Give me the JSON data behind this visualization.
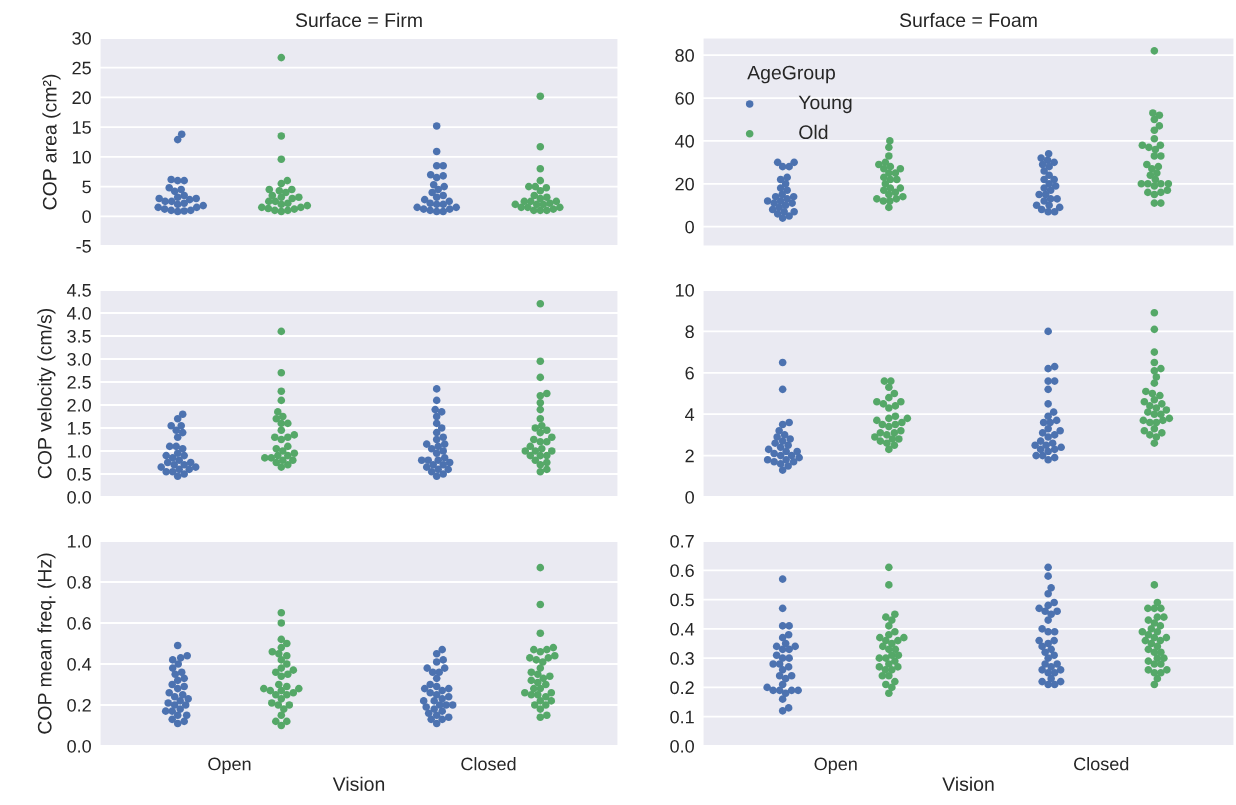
{
  "chart_data": [
    {
      "type": "scatter",
      "title": "Surface = Firm",
      "ylabel": "COP area (cm²)",
      "categories": [
        "Open",
        "Closed"
      ],
      "ylim": [
        -5,
        30
      ],
      "yticks": [
        -5,
        0,
        5,
        10,
        15,
        20,
        25,
        30
      ],
      "tick_labels": "y",
      "grid": "y",
      "marker": "circle",
      "series": [
        {
          "color": "#4c72b0",
          "x": [
            "Open",
            "Open",
            "Open",
            "Open",
            "Open",
            "Open",
            "Open",
            "Open",
            "Open",
            "Open",
            "Open",
            "Open",
            "Open",
            "Open",
            "Open",
            "Open",
            "Open",
            "Open",
            "Open",
            "Open",
            "Open",
            "Open",
            "Open",
            "Open",
            "Open",
            "Closed",
            "Closed",
            "Closed",
            "Closed",
            "Closed",
            "Closed",
            "Closed",
            "Closed",
            "Closed",
            "Closed",
            "Closed",
            "Closed",
            "Closed",
            "Closed",
            "Closed",
            "Closed",
            "Closed",
            "Closed",
            "Closed",
            "Closed",
            "Closed",
            "Closed",
            "Closed",
            "Closed",
            "Closed"
          ],
          "values": [
            6,
            1.5,
            3,
            0.8,
            2.2,
            1,
            3.5,
            6.2,
            1.8,
            2.8,
            6,
            1.2,
            13.8,
            4.5,
            2,
            12.9,
            1,
            4.8,
            3,
            1.5,
            2.5,
            0.9,
            3.2,
            2.5,
            4.2,
            0.8,
            2,
            3.2,
            1.5,
            2.5,
            15.2,
            1.2,
            6.8,
            5.3,
            3.5,
            1,
            4,
            2.2,
            6.5,
            8.5,
            1.2,
            5,
            8.5,
            2.8,
            4.5,
            1.5,
            10.9,
            7,
            2,
            0.8
          ]
        },
        {
          "color": "#55a868",
          "x": [
            "Open",
            "Open",
            "Open",
            "Open",
            "Open",
            "Open",
            "Open",
            "Open",
            "Open",
            "Open",
            "Open",
            "Open",
            "Open",
            "Open",
            "Open",
            "Open",
            "Open",
            "Open",
            "Open",
            "Open",
            "Open",
            "Open",
            "Open",
            "Open",
            "Open",
            "Closed",
            "Closed",
            "Closed",
            "Closed",
            "Closed",
            "Closed",
            "Closed",
            "Closed",
            "Closed",
            "Closed",
            "Closed",
            "Closed",
            "Closed",
            "Closed",
            "Closed",
            "Closed",
            "Closed",
            "Closed",
            "Closed",
            "Closed",
            "Closed",
            "Closed",
            "Closed",
            "Closed",
            "Closed"
          ],
          "values": [
            13.5,
            4.3,
            1.5,
            26.7,
            2.5,
            0.8,
            3.5,
            1.8,
            1.2,
            4.5,
            2.2,
            3.2,
            1.3,
            9.6,
            4,
            2,
            3.2,
            1,
            2.5,
            4.5,
            6,
            1.5,
            5.5,
            1,
            3,
            6,
            1,
            3.5,
            4.8,
            2.5,
            5,
            20.2,
            2,
            1.2,
            3,
            2,
            1.5,
            2.5,
            8,
            1,
            3.2,
            1.5,
            5,
            11.7,
            2.5,
            4.3,
            1,
            2.2,
            1.5,
            2
          ]
        }
      ]
    },
    {
      "type": "scatter",
      "title": "Surface = Foam",
      "legend_title": "AgeGroup",
      "legend": "top left",
      "categories": [
        "Open",
        "Closed"
      ],
      "ylim": [
        -9,
        88
      ],
      "yticks": [
        0,
        20,
        40,
        60,
        80
      ],
      "tick_labels": "y",
      "grid": "y",
      "marker": "circle",
      "series": [
        {
          "name": "Young",
          "color": "#4c72b0",
          "x": [
            "Open",
            "Open",
            "Open",
            "Open",
            "Open",
            "Open",
            "Open",
            "Open",
            "Open",
            "Open",
            "Open",
            "Open",
            "Open",
            "Open",
            "Open",
            "Open",
            "Open",
            "Open",
            "Open",
            "Open",
            "Open",
            "Open",
            "Open",
            "Open",
            "Open",
            "Closed",
            "Closed",
            "Closed",
            "Closed",
            "Closed",
            "Closed",
            "Closed",
            "Closed",
            "Closed",
            "Closed",
            "Closed",
            "Closed",
            "Closed",
            "Closed",
            "Closed",
            "Closed",
            "Closed",
            "Closed",
            "Closed",
            "Closed",
            "Closed",
            "Closed",
            "Closed",
            "Closed",
            "Closed"
          ],
          "values": [
            15,
            11,
            18,
            5,
            30,
            13,
            23,
            8,
            10,
            20,
            12,
            7,
            28,
            14,
            9,
            28,
            30,
            11,
            7,
            14,
            22,
            4,
            12,
            6,
            17,
            30,
            19,
            9,
            22,
            13,
            31,
            17,
            22,
            13,
            8,
            10,
            32,
            15,
            24,
            7,
            29,
            12,
            20,
            28,
            10,
            15,
            7,
            34,
            18,
            26
          ]
        },
        {
          "name": "Old",
          "color": "#55a868",
          "x": [
            "Open",
            "Open",
            "Open",
            "Open",
            "Open",
            "Open",
            "Open",
            "Open",
            "Open",
            "Open",
            "Open",
            "Open",
            "Open",
            "Open",
            "Open",
            "Open",
            "Open",
            "Open",
            "Open",
            "Open",
            "Open",
            "Open",
            "Open",
            "Open",
            "Open",
            "Closed",
            "Closed",
            "Closed",
            "Closed",
            "Closed",
            "Closed",
            "Closed",
            "Closed",
            "Closed",
            "Closed",
            "Closed",
            "Closed",
            "Closed",
            "Closed",
            "Closed",
            "Closed",
            "Closed",
            "Closed",
            "Closed",
            "Closed",
            "Closed",
            "Closed",
            "Closed",
            "Closed",
            "Closed",
            "Closed",
            "Closed",
            "Closed",
            "Closed",
            "Closed"
          ],
          "values": [
            27,
            15,
            30,
            22,
            13,
            29,
            18,
            25,
            12,
            20,
            28,
            16,
            33,
            23,
            40,
            9,
            18,
            27,
            13,
            37,
            22,
            12,
            17,
            25,
            14,
            50,
            15,
            41,
            28,
            20,
            38,
            17,
            47,
            27,
            52,
            19,
            45,
            33,
            11,
            24,
            37,
            16,
            20,
            53,
            29,
            38,
            11,
            22,
            36,
            33,
            20,
            25,
            82,
            20,
            16
          ]
        }
      ]
    },
    {
      "type": "scatter",
      "ylabel": "COP velocity (cm/s)",
      "categories": [
        "Open",
        "Closed"
      ],
      "ylim": [
        0,
        4.5
      ],
      "yticks": [
        {
          "value": 0,
          "label": "0.0"
        },
        0.5,
        {
          "value": 1,
          "label": "1.0"
        },
        1.5,
        {
          "value": 2,
          "label": "2.0"
        },
        2.5,
        {
          "value": 3,
          "label": "3.0"
        },
        3.5,
        {
          "value": 4,
          "label": "4.0"
        },
        4.5
      ],
      "tick_labels": "y",
      "grid": "y",
      "marker": "circle",
      "series": [
        {
          "color": "#4c72b0",
          "x": [
            "Open",
            "Open",
            "Open",
            "Open",
            "Open",
            "Open",
            "Open",
            "Open",
            "Open",
            "Open",
            "Open",
            "Open",
            "Open",
            "Open",
            "Open",
            "Open",
            "Open",
            "Open",
            "Open",
            "Open",
            "Open",
            "Open",
            "Open",
            "Open",
            "Open",
            "Open",
            "Open",
            "Closed",
            "Closed",
            "Closed",
            "Closed",
            "Closed",
            "Closed",
            "Closed",
            "Closed",
            "Closed",
            "Closed",
            "Closed",
            "Closed",
            "Closed",
            "Closed",
            "Closed",
            "Closed",
            "Closed",
            "Closed",
            "Closed",
            "Closed",
            "Closed",
            "Closed",
            "Closed",
            "Closed",
            "Closed",
            "Closed",
            "Closed",
            "Closed",
            "Closed"
          ],
          "values": [
            0.65,
            1.05,
            0.85,
            0.7,
            1.7,
            0.55,
            1.8,
            0.9,
            1.55,
            1.3,
            0.6,
            0.75,
            0.6,
            0.8,
            1.1,
            0.7,
            0.95,
            0.55,
            1.45,
            0.75,
            1.1,
            0.5,
            1.55,
            1.4,
            0.65,
            0.45,
            0.9,
            0.5,
            1.15,
            2.1,
            0.85,
            1.0,
            0.7,
            1.75,
            1.9,
            1.4,
            0.8,
            1.6,
            1.05,
            1.85,
            0.45,
            0.7,
            1.25,
            0.65,
            1.5,
            2.35,
            0.95,
            1.15,
            0.8,
            0.6,
            1.1,
            0.75,
            1.3,
            0.55,
            0.8,
            0.6
          ]
        },
        {
          "color": "#55a868",
          "x": [
            "Open",
            "Open",
            "Open",
            "Open",
            "Open",
            "Open",
            "Open",
            "Open",
            "Open",
            "Open",
            "Open",
            "Open",
            "Open",
            "Open",
            "Open",
            "Open",
            "Open",
            "Open",
            "Open",
            "Open",
            "Open",
            "Open",
            "Open",
            "Open",
            "Open",
            "Open",
            "Open",
            "Closed",
            "Closed",
            "Closed",
            "Closed",
            "Closed",
            "Closed",
            "Closed",
            "Closed",
            "Closed",
            "Closed",
            "Closed",
            "Closed",
            "Closed",
            "Closed",
            "Closed",
            "Closed",
            "Closed",
            "Closed",
            "Closed",
            "Closed",
            "Closed",
            "Closed",
            "Closed",
            "Closed",
            "Closed",
            "Closed",
            "Closed",
            "Closed",
            "Closed"
          ],
          "values": [
            0.8,
            1.75,
            1.0,
            0.65,
            1.1,
            0.9,
            2.1,
            1.85,
            1.3,
            2.3,
            0.8,
            1.45,
            0.95,
            2.7,
            1.6,
            0.85,
            3.6,
            0.7,
            1.6,
            1.25,
            0.75,
            1.35,
            0.9,
            1.05,
            1.7,
            1.3,
            0.85,
            0.8,
            1.2,
            1.45,
            2.05,
            0.9,
            2.25,
            1.25,
            0.6,
            1.7,
            1.0,
            0.55,
            1.2,
            0.9,
            2.6,
            1.55,
            1.0,
            4.2,
            1.4,
            0.7,
            1.05,
            2.2,
            1.3,
            1.1,
            1.9,
            0.75,
            1.5,
            1.0,
            2.95,
            0.9
          ]
        }
      ]
    },
    {
      "type": "scatter",
      "categories": [
        "Open",
        "Closed"
      ],
      "ylim": [
        0,
        10
      ],
      "yticks": [
        0,
        2,
        4,
        6,
        8,
        10
      ],
      "tick_labels": "y",
      "grid": "y",
      "marker": "circle",
      "series": [
        {
          "color": "#4c72b0",
          "x": [
            "Open",
            "Open",
            "Open",
            "Open",
            "Open",
            "Open",
            "Open",
            "Open",
            "Open",
            "Open",
            "Open",
            "Open",
            "Open",
            "Open",
            "Open",
            "Open",
            "Open",
            "Open",
            "Open",
            "Open",
            "Open",
            "Open",
            "Open",
            "Open",
            "Open",
            "Open",
            "Closed",
            "Closed",
            "Closed",
            "Closed",
            "Closed",
            "Closed",
            "Closed",
            "Closed",
            "Closed",
            "Closed",
            "Closed",
            "Closed",
            "Closed",
            "Closed",
            "Closed",
            "Closed",
            "Closed",
            "Closed",
            "Closed",
            "Closed",
            "Closed",
            "Closed",
            "Closed",
            "Closed",
            "Closed",
            "Closed",
            "Closed",
            "Closed",
            "Closed"
          ],
          "values": [
            2.5,
            1.8,
            2.2,
            1.9,
            2.9,
            1.5,
            2.4,
            1.3,
            2.0,
            3.0,
            1.7,
            2.3,
            5.2,
            3.6,
            2.6,
            1.8,
            3.2,
            2.1,
            2.8,
            1.6,
            3.5,
            2.0,
            2.7,
            6.5,
            1.7,
            2.2,
            2.4,
            3.1,
            6.2,
            2.0,
            2.7,
            3.7,
            5.6,
            1.9,
            3.2,
            2.5,
            4.1,
            3.0,
            2.2,
            1.8,
            6.3,
            5.2,
            3.6,
            2.3,
            8.0,
            2.6,
            3.3,
            2.0,
            5.6,
            4.5,
            3.6,
            2.5,
            3.9,
            2.9,
            2.3
          ]
        },
        {
          "color": "#55a868",
          "x": [
            "Open",
            "Open",
            "Open",
            "Open",
            "Open",
            "Open",
            "Open",
            "Open",
            "Open",
            "Open",
            "Open",
            "Open",
            "Open",
            "Open",
            "Open",
            "Open",
            "Open",
            "Open",
            "Open",
            "Open",
            "Open",
            "Open",
            "Open",
            "Open",
            "Open",
            "Open",
            "Open",
            "Open",
            "Open",
            "Closed",
            "Closed",
            "Closed",
            "Closed",
            "Closed",
            "Closed",
            "Closed",
            "Closed",
            "Closed",
            "Closed",
            "Closed",
            "Closed",
            "Closed",
            "Closed",
            "Closed",
            "Closed",
            "Closed",
            "Closed",
            "Closed",
            "Closed",
            "Closed",
            "Closed",
            "Closed",
            "Closed",
            "Closed",
            "Closed",
            "Closed",
            "Closed",
            "Closed",
            "Closed",
            "Closed"
          ],
          "values": [
            3.6,
            5.0,
            2.7,
            4.5,
            3.9,
            3.0,
            3.5,
            2.6,
            4.6,
            2.3,
            3.8,
            3.1,
            5.6,
            4.8,
            2.8,
            3.5,
            2.5,
            5.3,
            4.4,
            3.2,
            3.7,
            2.9,
            4.3,
            3.4,
            5.6,
            2.8,
            3.8,
            4.6,
            3.1,
            5.0,
            4.5,
            3.7,
            4.1,
            2.6,
            6.2,
            3.6,
            4.9,
            3.0,
            4.0,
            3.3,
            4.6,
            5.5,
            3.8,
            5.8,
            3.2,
            4.3,
            7.0,
            3.6,
            4.7,
            2.9,
            6.1,
            4.0,
            8.9,
            4.4,
            3.7,
            5.1,
            3.1,
            8.1,
            6.5,
            4.2
          ]
        }
      ]
    },
    {
      "type": "scatter",
      "xlabel": "Vision",
      "ylabel": "COP mean freq. (Hz)",
      "categories": [
        "Open",
        "Closed"
      ],
      "ylim": [
        0,
        1
      ],
      "yticks": [
        {
          "value": 0,
          "label": "0.0"
        },
        0.2,
        0.4,
        0.6,
        0.8,
        {
          "value": 1,
          "label": "1.0"
        }
      ],
      "grid": "y",
      "marker": "circle",
      "series": [
        {
          "color": "#4c72b0",
          "x": [
            "Open",
            "Open",
            "Open",
            "Open",
            "Open",
            "Open",
            "Open",
            "Open",
            "Open",
            "Open",
            "Open",
            "Open",
            "Open",
            "Open",
            "Open",
            "Open",
            "Open",
            "Open",
            "Open",
            "Open",
            "Open",
            "Open",
            "Open",
            "Open",
            "Open",
            "Open",
            "Open",
            "Open",
            "Open",
            "Closed",
            "Closed",
            "Closed",
            "Closed",
            "Closed",
            "Closed",
            "Closed",
            "Closed",
            "Closed",
            "Closed",
            "Closed",
            "Closed",
            "Closed",
            "Closed",
            "Closed",
            "Closed",
            "Closed",
            "Closed",
            "Closed",
            "Closed",
            "Closed",
            "Closed",
            "Closed",
            "Closed",
            "Closed",
            "Closed",
            "Closed",
            "Closed",
            "Closed",
            "Closed",
            "Closed",
            "Closed"
          ],
          "values": [
            0.35,
            0.2,
            0.11,
            0.49,
            0.23,
            0.12,
            0.43,
            0.17,
            0.3,
            0.2,
            0.36,
            0.25,
            0.21,
            0.32,
            0.15,
            0.44,
            0.28,
            0.18,
            0.42,
            0.13,
            0.26,
            0.33,
            0.17,
            0.4,
            0.22,
            0.29,
            0.15,
            0.38,
            0.24,
            0.24,
            0.17,
            0.13,
            0.28,
            0.41,
            0.2,
            0.15,
            0.36,
            0.22,
            0.47,
            0.29,
            0.45,
            0.18,
            0.38,
            0.27,
            0.14,
            0.42,
            0.11,
            0.25,
            0.2,
            0.33,
            0.13,
            0.3,
            0.22,
            0.26,
            0.36,
            0.19,
            0.28,
            0.38,
            0.16,
            0.23,
            0.2
          ]
        },
        {
          "color": "#55a868",
          "x": [
            "Open",
            "Open",
            "Open",
            "Open",
            "Open",
            "Open",
            "Open",
            "Open",
            "Open",
            "Open",
            "Open",
            "Open",
            "Open",
            "Open",
            "Open",
            "Open",
            "Open",
            "Open",
            "Open",
            "Open",
            "Open",
            "Open",
            "Open",
            "Open",
            "Open",
            "Open",
            "Open",
            "Open",
            "Open",
            "Open",
            "Open",
            "Open",
            "Open",
            "Closed",
            "Closed",
            "Closed",
            "Closed",
            "Closed",
            "Closed",
            "Closed",
            "Closed",
            "Closed",
            "Closed",
            "Closed",
            "Closed",
            "Closed",
            "Closed",
            "Closed",
            "Closed",
            "Closed",
            "Closed",
            "Closed",
            "Closed",
            "Closed",
            "Closed",
            "Closed",
            "Closed",
            "Closed",
            "Closed",
            "Closed",
            "Closed",
            "Closed",
            "Closed",
            "Closed",
            "Closed",
            "Closed",
            "Closed"
          ],
          "values": [
            0.65,
            0.44,
            0.27,
            0.12,
            0.4,
            0.25,
            0.21,
            0.3,
            0.38,
            0.25,
            0.6,
            0.18,
            0.36,
            0.26,
            0.1,
            0.46,
            0.29,
            0.5,
            0.23,
            0.37,
            0.48,
            0.2,
            0.45,
            0.15,
            0.28,
            0.35,
            0.52,
            0.42,
            0.27,
            0.34,
            0.2,
            0.28,
            0.12,
            0.87,
            0.25,
            0.43,
            0.18,
            0.46,
            0.28,
            0.44,
            0.32,
            0.22,
            0.55,
            0.3,
            0.47,
            0.36,
            0.2,
            0.33,
            0.41,
            0.26,
            0.15,
            0.43,
            0.31,
            0.69,
            0.38,
            0.22,
            0.35,
            0.25,
            0.42,
            0.2,
            0.47,
            0.28,
            0.14,
            0.24,
            0.48,
            0.26,
            0.34
          ]
        }
      ]
    },
    {
      "type": "scatter",
      "xlabel": "Vision",
      "categories": [
        "Open",
        "Closed"
      ],
      "ylim": [
        0,
        0.7
      ],
      "yticks": [
        {
          "value": 0,
          "label": "0.0"
        },
        0.1,
        0.2,
        0.3,
        0.4,
        0.5,
        0.6,
        0.7
      ],
      "grid": "y",
      "marker": "circle",
      "series": [
        {
          "color": "#4c72b0",
          "x": [
            "Open",
            "Open",
            "Open",
            "Open",
            "Open",
            "Open",
            "Open",
            "Open",
            "Open",
            "Open",
            "Open",
            "Open",
            "Open",
            "Open",
            "Open",
            "Open",
            "Open",
            "Open",
            "Open",
            "Open",
            "Open",
            "Open",
            "Open",
            "Open",
            "Open",
            "Open",
            "Open",
            "Open",
            "Open",
            "Open",
            "Open",
            "Closed",
            "Closed",
            "Closed",
            "Closed",
            "Closed",
            "Closed",
            "Closed",
            "Closed",
            "Closed",
            "Closed",
            "Closed",
            "Closed",
            "Closed",
            "Closed",
            "Closed",
            "Closed",
            "Closed",
            "Closed",
            "Closed",
            "Closed",
            "Closed",
            "Closed",
            "Closed",
            "Closed",
            "Closed",
            "Closed",
            "Closed",
            "Closed",
            "Closed",
            "Closed",
            "Closed",
            "Closed",
            "Closed",
            "Closed"
          ],
          "values": [
            0.33,
            0.19,
            0.16,
            0.28,
            0.34,
            0.21,
            0.31,
            0.19,
            0.35,
            0.41,
            0.26,
            0.3,
            0.13,
            0.24,
            0.34,
            0.19,
            0.27,
            0.33,
            0.18,
            0.38,
            0.23,
            0.12,
            0.3,
            0.41,
            0.2,
            0.47,
            0.28,
            0.57,
            0.19,
            0.37,
            0.24,
            0.3,
            0.4,
            0.36,
            0.25,
            0.22,
            0.45,
            0.33,
            0.28,
            0.52,
            0.21,
            0.39,
            0.54,
            0.31,
            0.23,
            0.46,
            0.35,
            0.27,
            0.43,
            0.47,
            0.36,
            0.26,
            0.48,
            0.32,
            0.25,
            0.49,
            0.39,
            0.28,
            0.34,
            0.22,
            0.61,
            0.58,
            0.26,
            0.46,
            0.21
          ]
        },
        {
          "color": "#55a868",
          "x": [
            "Open",
            "Open",
            "Open",
            "Open",
            "Open",
            "Open",
            "Open",
            "Open",
            "Open",
            "Open",
            "Open",
            "Open",
            "Open",
            "Open",
            "Open",
            "Open",
            "Open",
            "Open",
            "Open",
            "Open",
            "Open",
            "Open",
            "Open",
            "Open",
            "Open",
            "Open",
            "Open",
            "Open",
            "Open",
            "Open",
            "Open",
            "Open",
            "Closed",
            "Closed",
            "Closed",
            "Closed",
            "Closed",
            "Closed",
            "Closed",
            "Closed",
            "Closed",
            "Closed",
            "Closed",
            "Closed",
            "Closed",
            "Closed",
            "Closed",
            "Closed",
            "Closed",
            "Closed",
            "Closed",
            "Closed",
            "Closed",
            "Closed",
            "Closed",
            "Closed",
            "Closed",
            "Closed",
            "Closed",
            "Closed",
            "Closed",
            "Closed",
            "Closed",
            "Closed",
            "Closed",
            "Closed"
          ],
          "values": [
            0.26,
            0.36,
            0.45,
            0.24,
            0.21,
            0.3,
            0.55,
            0.33,
            0.27,
            0.39,
            0.29,
            0.43,
            0.61,
            0.18,
            0.34,
            0.22,
            0.38,
            0.31,
            0.24,
            0.41,
            0.36,
            0.28,
            0.44,
            0.3,
            0.37,
            0.26,
            0.33,
            0.35,
            0.2,
            0.31,
            0.27,
            0.37,
            0.55,
            0.26,
            0.44,
            0.35,
            0.39,
            0.23,
            0.28,
            0.47,
            0.37,
            0.3,
            0.41,
            0.25,
            0.47,
            0.36,
            0.33,
            0.4,
            0.28,
            0.44,
            0.36,
            0.32,
            0.49,
            0.29,
            0.39,
            0.25,
            0.47,
            0.34,
            0.42,
            0.21,
            0.26,
            0.37,
            0.3,
            0.43,
            0.32,
            0.38
          ]
        }
      ]
    }
  ]
}
